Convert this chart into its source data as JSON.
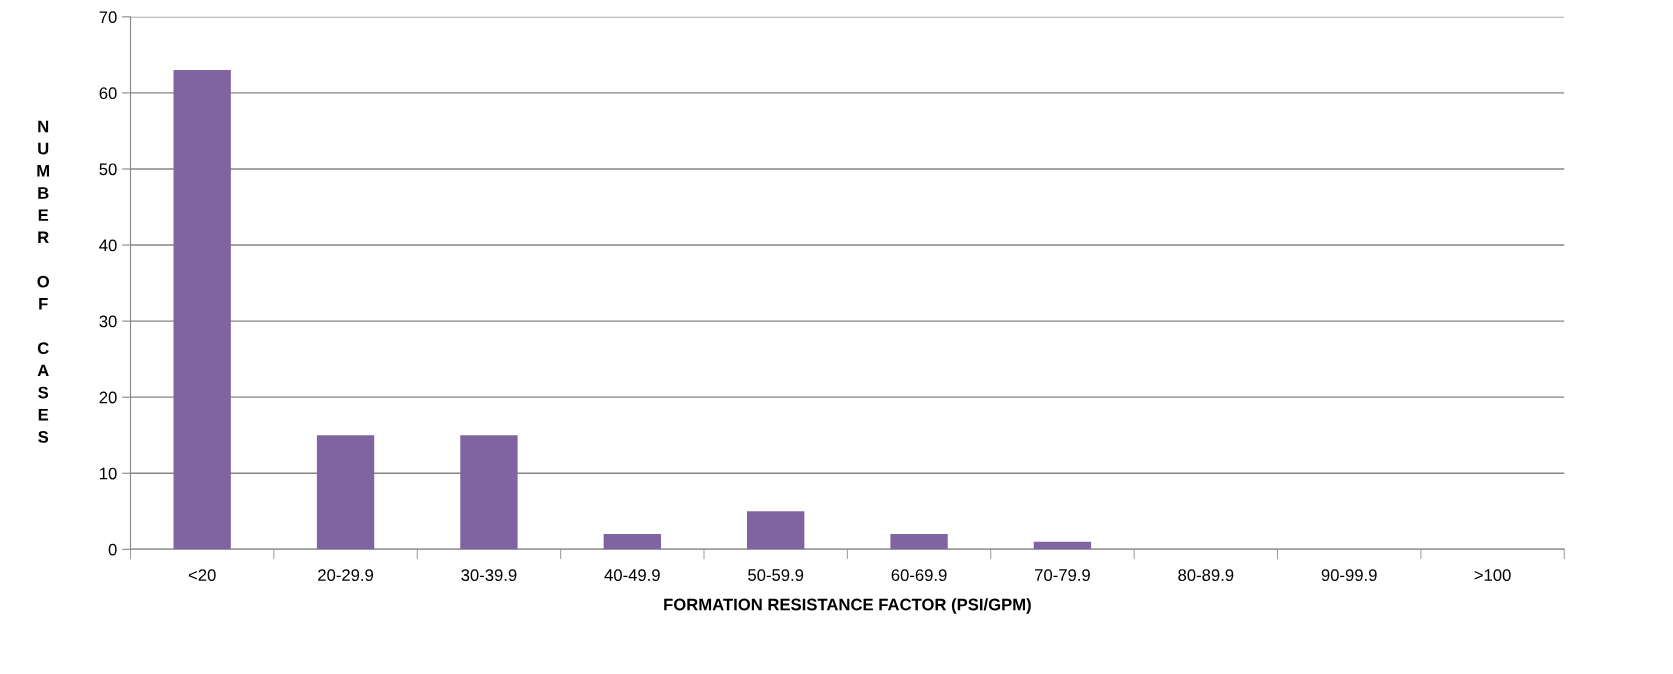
{
  "chart_data": {
    "type": "bar",
    "xlabel": "FORMATION RESISTANCE FACTOR (PSI/GPM)",
    "ylabel": "NUMBER OF CASES",
    "categories": [
      "<20",
      "20-29.9",
      "30-39.9",
      "40-49.9",
      "50-59.9",
      "60-69.9",
      "70-79.9",
      "80-89.9",
      "90-99.9",
      ">100"
    ],
    "values": [
      63,
      15,
      15,
      2,
      5,
      2,
      1,
      0,
      0,
      0
    ],
    "color": "#8064a2",
    "ylim": [
      0,
      70
    ],
    "yticks": [
      0,
      10,
      20,
      30,
      40,
      50,
      60,
      70
    ],
    "grid": "y",
    "legend": false
  }
}
